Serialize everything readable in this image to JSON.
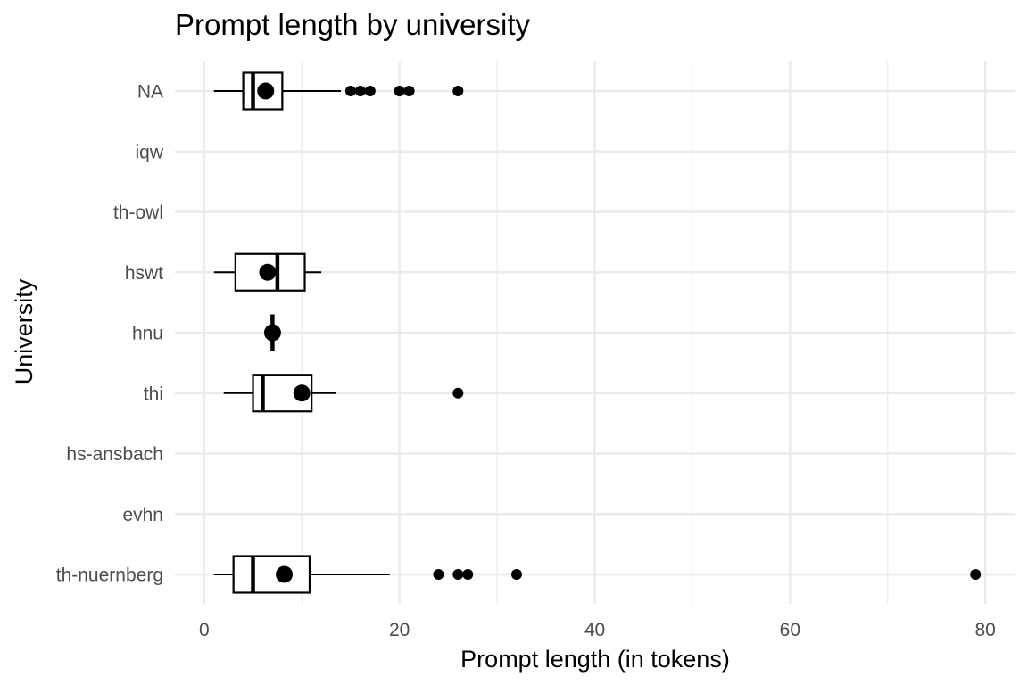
{
  "chart_data": {
    "type": "boxplot",
    "title": "Prompt length by university",
    "xlabel": "Prompt length (in tokens)",
    "ylabel": "University",
    "xlim": [
      -3,
      83
    ],
    "xticks": [
      0,
      20,
      40,
      60,
      80
    ],
    "grid": true,
    "categories": [
      "NA",
      "iqw",
      "th-owl",
      "hswt",
      "hnu",
      "thi",
      "hs-ansbach",
      "evhn",
      "th-nuernberg"
    ],
    "boxes": [
      {
        "category": "NA",
        "whisker_low": 1,
        "q1": 4,
        "median": 5,
        "q3": 8,
        "whisker_high": 14,
        "mean": 6.3,
        "outliers": [
          15,
          16,
          17,
          20,
          21,
          26
        ]
      },
      {
        "category": "iqw",
        "whisker_low": null,
        "q1": null,
        "median": null,
        "q3": null,
        "whisker_high": null,
        "mean": null,
        "outliers": []
      },
      {
        "category": "th-owl",
        "whisker_low": null,
        "q1": null,
        "median": null,
        "q3": null,
        "whisker_high": null,
        "mean": null,
        "outliers": []
      },
      {
        "category": "hswt",
        "whisker_low": 1,
        "q1": 3.2,
        "median": 7.5,
        "q3": 10.3,
        "whisker_high": 12,
        "mean": 6.5,
        "outliers": []
      },
      {
        "category": "hnu",
        "whisker_low": 7,
        "q1": 7,
        "median": 7,
        "q3": 7,
        "whisker_high": 7,
        "mean": 7,
        "outliers": []
      },
      {
        "category": "thi",
        "whisker_low": 2,
        "q1": 5,
        "median": 6,
        "q3": 11,
        "whisker_high": 13.5,
        "mean": 10,
        "outliers": [
          26
        ]
      },
      {
        "category": "hs-ansbach",
        "whisker_low": null,
        "q1": null,
        "median": null,
        "q3": null,
        "whisker_high": null,
        "mean": null,
        "outliers": []
      },
      {
        "category": "evhn",
        "whisker_low": null,
        "q1": null,
        "median": null,
        "q3": null,
        "whisker_high": null,
        "mean": null,
        "outliers": []
      },
      {
        "category": "th-nuernberg",
        "whisker_low": 1,
        "q1": 3,
        "median": 5,
        "q3": 10.8,
        "whisker_high": 19,
        "mean": 8.2,
        "outliers": [
          24,
          26,
          27,
          32,
          79
        ]
      }
    ]
  }
}
